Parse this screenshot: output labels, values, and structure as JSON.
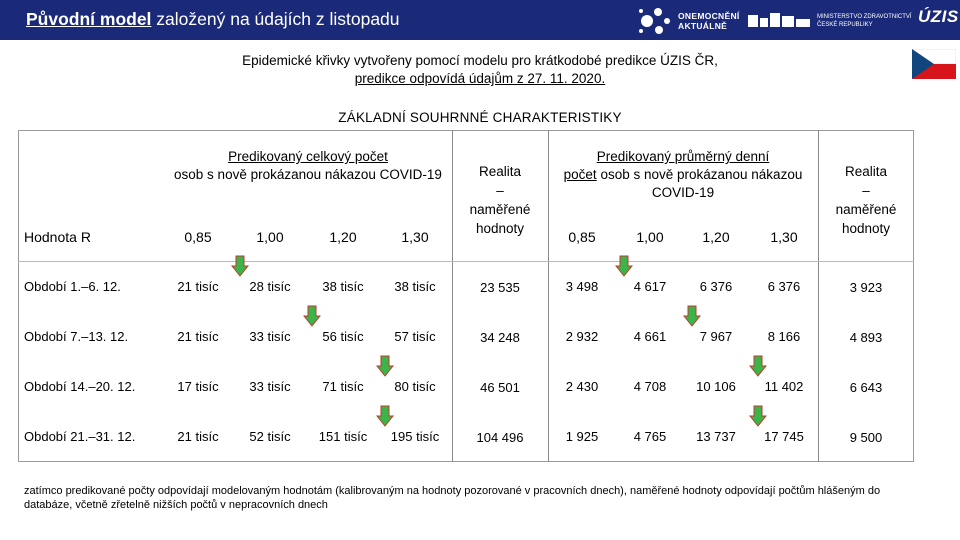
{
  "header": {
    "title_underlined": "Původní model",
    "title_rest": " založený na údajích z listopadu",
    "logo_onemocneni_line1": "ONEMOCNĚNÍ",
    "logo_onemocneni_line2": "AKTUÁLNĚ",
    "logo_mz_line1": "MINISTERSTVO ZDRAVOTNICTVÍ",
    "logo_mz_line2": "ČESKÉ REPUBLIKY",
    "logo_uzis": "ÚZIS"
  },
  "subtitle": {
    "line1": "Epidemické křivky vytvořeny pomocí modelu pro krátkodobé predikce ÚZIS ČR,",
    "line2": "predikce odpovídá údajům z 27. 11. 2020."
  },
  "section_heading": "ZÁKLADNÍ SOUHRNNÉ CHARAKTERISTIKY",
  "table": {
    "group1_title": "Predikovaný celkový počet",
    "group1_rest": "osob s nově prokázanou nákazou COVID-19",
    "group2_title": "Predikovaný průměrný denní",
    "group2_rest_u": "počet",
    "group2_rest": " osob s nově prokázanou nákazou COVID-19",
    "realita_line1": "Realita",
    "realita_line2": "–",
    "realita_line3": "naměřené",
    "realita_line4": "hodnoty",
    "hodnota_label": "Hodnota R",
    "r_values": [
      "0,85",
      "1,00",
      "1,20",
      "1,30"
    ],
    "rows": [
      {
        "label_prefix": "Období ",
        "label_range": "1.–6. 12.",
        "total": [
          "21 tisíc",
          "28 tisíc",
          "38 tisíc",
          "38 tisíc"
        ],
        "real_total": "23 535",
        "daily": [
          "3 498",
          "4 617",
          "6 376",
          "6 376"
        ],
        "real_daily": "3 923"
      },
      {
        "label_prefix": "Období ",
        "label_range": "7.–13. 12.",
        "total": [
          "21 tisíc",
          "33 tisíc",
          "56 tisíc",
          "57 tisíc"
        ],
        "real_total": "34 248",
        "daily": [
          "2 932",
          "4 661",
          "7 967",
          "8 166"
        ],
        "real_daily": "4 893"
      },
      {
        "label_prefix": "Období ",
        "label_range": "14.–20. 12.",
        "total": [
          "17 tisíc",
          "33 tisíc",
          "71 tisíc",
          "80 tisíc"
        ],
        "real_total": "46 501",
        "daily": [
          "2 430",
          "4 708",
          "10 106",
          "11 402"
        ],
        "real_daily": "6 643"
      },
      {
        "label_prefix": "Období ",
        "label_range": "21.–31. 12.",
        "total": [
          "21 tisíc",
          "52 tisíc",
          "151 tisíc",
          "195 tisíc"
        ],
        "real_total": "104 496",
        "daily": [
          "1 925",
          "4 765",
          "13 737",
          "17 745"
        ],
        "real_daily": "9 500"
      }
    ]
  },
  "indicator_arrows": [
    {
      "row": 1,
      "group": "total",
      "column": "0,85",
      "direction": "down",
      "color": "#3bb44a"
    },
    {
      "row": 1,
      "group": "daily",
      "column": "0,85",
      "direction": "down",
      "color": "#3bb44a"
    },
    {
      "row": 2,
      "group": "total",
      "column": "1,00",
      "direction": "down",
      "color": "#3bb44a"
    },
    {
      "row": 2,
      "group": "daily",
      "column": "1,00",
      "direction": "down",
      "color": "#3bb44a"
    },
    {
      "row": 3,
      "group": "total",
      "column": "1,20",
      "direction": "down",
      "color": "#3bb44a"
    },
    {
      "row": 3,
      "group": "daily",
      "column": "1,20",
      "direction": "down",
      "color": "#3bb44a"
    },
    {
      "row": 4,
      "group": "total",
      "column": "1,20",
      "direction": "down",
      "color": "#3bb44a"
    },
    {
      "row": 4,
      "group": "daily",
      "column": "1,20",
      "direction": "down",
      "color": "#3bb44a"
    }
  ],
  "footnote": "zatímco predikované počty odpovídají modelovaným hodnotám (kalibrovaným na hodnoty pozorované v pracovních dnech), naměřené hodnoty odpovídají počtům hlášeným do databáze, včetně zřetelně nižších počtů v nepracovních dnech",
  "colors": {
    "header_bg": "#1b2a78",
    "arrow_green": "#3bb44a",
    "arrow_outline": "#c0392b",
    "flag_blue": "#11457e",
    "flag_red": "#d7141a"
  }
}
